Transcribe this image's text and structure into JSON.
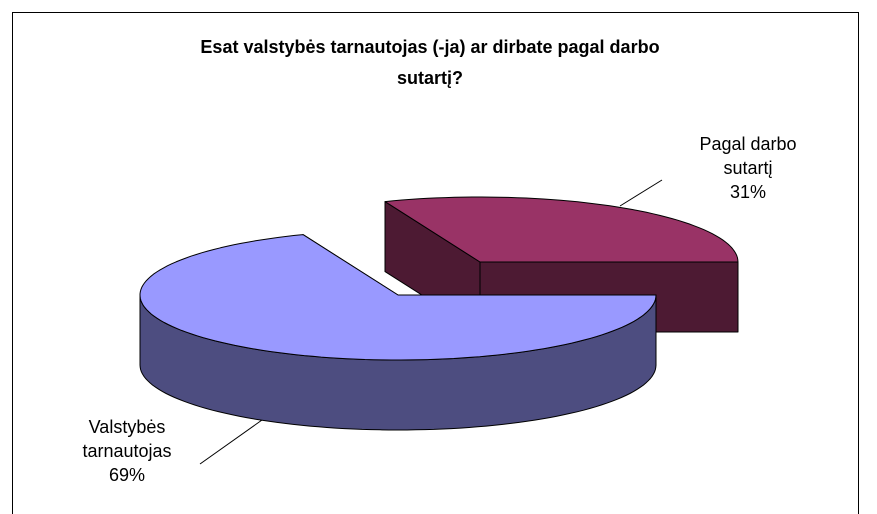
{
  "chart_data": {
    "type": "pie3d",
    "title": "Esat valstybės tarnautojas (-ja) ar dirbate pagal darbo sutartį?",
    "categories": [
      "Valstybės tarnautojas",
      "Pagal darbo sutartį"
    ],
    "values": [
      69,
      31
    ],
    "value_labels": [
      "69%",
      "31%"
    ],
    "colors": [
      "#9999ff",
      "#993366"
    ],
    "side_colors": [
      "#4d4d80",
      "#4d1a33"
    ]
  }
}
